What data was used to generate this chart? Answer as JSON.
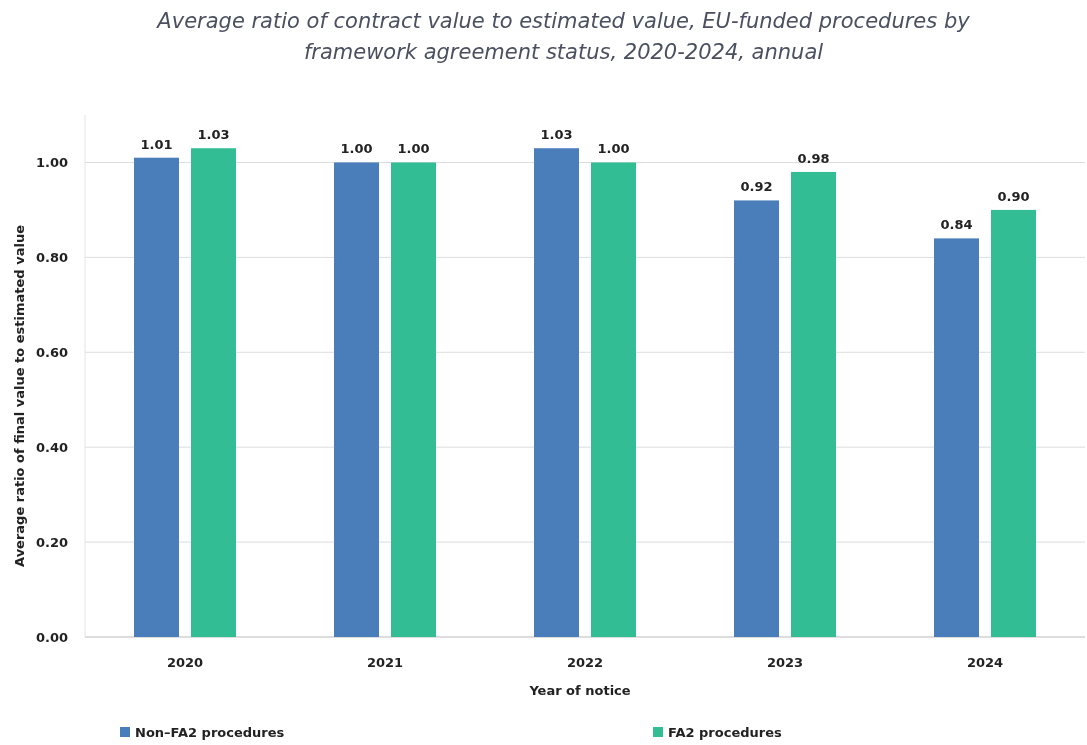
{
  "chart_data": {
    "type": "bar",
    "title": "Average ratio of contract value to estimated value, EU-funded procedures by framework agreement status, 2020-2024, annual",
    "xlabel": "Year of notice",
    "ylabel": "Average ratio of final value to estimated value",
    "categories": [
      "2020",
      "2021",
      "2022",
      "2023",
      "2024"
    ],
    "series": [
      {
        "name": "Non–FA2 procedures",
        "color": "#4a7ebb",
        "values": [
          1.01,
          1.0,
          1.03,
          0.92,
          0.84
        ],
        "value_labels": [
          "1.01",
          "1.00",
          "1.03",
          "0.92",
          "0.84"
        ]
      },
      {
        "name": "FA2 procedures",
        "color": "#33bd94",
        "values": [
          1.03,
          1.0,
          1.0,
          0.98,
          0.9
        ],
        "value_labels": [
          "1.03",
          "1.00",
          "1.00",
          "0.98",
          "0.90"
        ]
      }
    ],
    "ylim": [
      0,
      1.1
    ],
    "yticks": [
      {
        "value": 0,
        "label": "0.00"
      },
      {
        "value": 0.2,
        "label": "0.20"
      },
      {
        "value": 0.4,
        "label": "0.40"
      },
      {
        "value": 0.6,
        "label": "0.60"
      },
      {
        "value": 0.8,
        "label": "0.80"
      },
      {
        "value": 1,
        "label": "1.00"
      }
    ],
    "grid": "y",
    "legend": "bottom"
  }
}
